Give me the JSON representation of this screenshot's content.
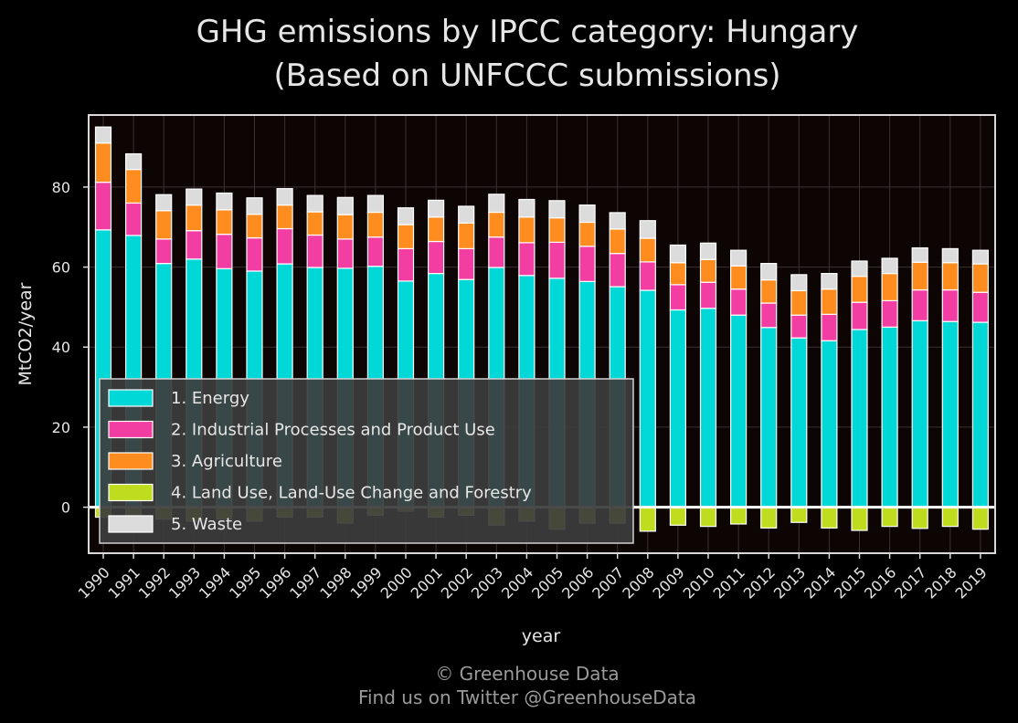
{
  "chart_data": {
    "type": "bar",
    "stacked": true,
    "title_line1": "GHG emissions by IPCC category: Hungary",
    "title_line2": "(Based on UNFCCC submissions)",
    "xlabel": "year",
    "ylabel": "MtCO2/year",
    "ylim": [
      -11.5,
      98
    ],
    "yticks": [
      0,
      20,
      40,
      60,
      80
    ],
    "grid": true,
    "legend_position": "lower-left",
    "background_color": "#0d0404",
    "frame_color": "#d9d9d9",
    "categories": [
      "1990",
      "1991",
      "1992",
      "1993",
      "1994",
      "1995",
      "1996",
      "1997",
      "1998",
      "1999",
      "2000",
      "2001",
      "2002",
      "2003",
      "2004",
      "2005",
      "2006",
      "2007",
      "2008",
      "2009",
      "2010",
      "2011",
      "2012",
      "2013",
      "2014",
      "2015",
      "2016",
      "2017",
      "2018",
      "2019"
    ],
    "series": [
      {
        "name": "1. Energy",
        "color": "#00d8d8",
        "values": [
          69.3,
          67.9,
          60.9,
          62.0,
          59.6,
          59.0,
          60.8,
          59.9,
          59.7,
          60.2,
          56.5,
          58.4,
          56.9,
          59.9,
          57.9,
          57.2,
          56.4,
          55.1,
          54.2,
          49.3,
          49.7,
          48.0,
          44.9,
          42.3,
          41.6,
          44.4,
          45.0,
          46.6,
          46.4,
          46.2
        ]
      },
      {
        "name": "2. Industrial Processes and Product Use",
        "color": "#f23da3",
        "values": [
          11.9,
          8.1,
          6.1,
          7.1,
          8.6,
          8.3,
          8.8,
          8.1,
          7.3,
          7.3,
          8.1,
          8.0,
          7.7,
          7.6,
          8.2,
          9.0,
          8.8,
          8.3,
          7.1,
          6.3,
          6.5,
          6.5,
          6.1,
          5.7,
          6.6,
          6.8,
          6.6,
          7.7,
          7.9,
          7.5
        ]
      },
      {
        "name": "3. Agriculture",
        "color": "#ff8c1e",
        "values": [
          9.8,
          8.4,
          7.1,
          6.4,
          6.1,
          5.9,
          5.9,
          5.8,
          6.1,
          6.2,
          6.0,
          6.1,
          6.4,
          6.2,
          6.4,
          6.1,
          6.0,
          6.1,
          5.9,
          5.5,
          5.7,
          5.8,
          5.8,
          6.1,
          6.3,
          6.5,
          6.8,
          6.9,
          6.8,
          7.1
        ]
      },
      {
        "name": "4. Land Use, Land-Use Change and Forestry",
        "color": "#c0dc1e",
        "values": [
          -2.5,
          -2.5,
          -3.0,
          -3.5,
          -3.0,
          -3.5,
          -2.5,
          -2.5,
          -4.0,
          -2.0,
          -1.0,
          -2.5,
          -2.0,
          -4.5,
          -3.5,
          -5.5,
          -4.0,
          -4.0,
          -6.0,
          -4.5,
          -4.8,
          -4.2,
          -5.2,
          -3.8,
          -5.2,
          -5.8,
          -4.8,
          -5.3,
          -4.8,
          -5.5
        ]
      },
      {
        "name": "5. Waste",
        "color": "#dcdcdc",
        "values": [
          4.0,
          3.9,
          4.0,
          4.0,
          4.2,
          4.1,
          4.1,
          4.1,
          4.3,
          4.2,
          4.2,
          4.2,
          4.2,
          4.5,
          4.4,
          4.3,
          4.3,
          4.1,
          4.4,
          4.4,
          4.1,
          3.9,
          4.1,
          4.0,
          3.9,
          3.8,
          3.8,
          3.6,
          3.5,
          3.4
        ]
      }
    ]
  },
  "credits": {
    "line1": "© Greenhouse Data",
    "line2": "Find us on Twitter @GreenhouseData"
  }
}
